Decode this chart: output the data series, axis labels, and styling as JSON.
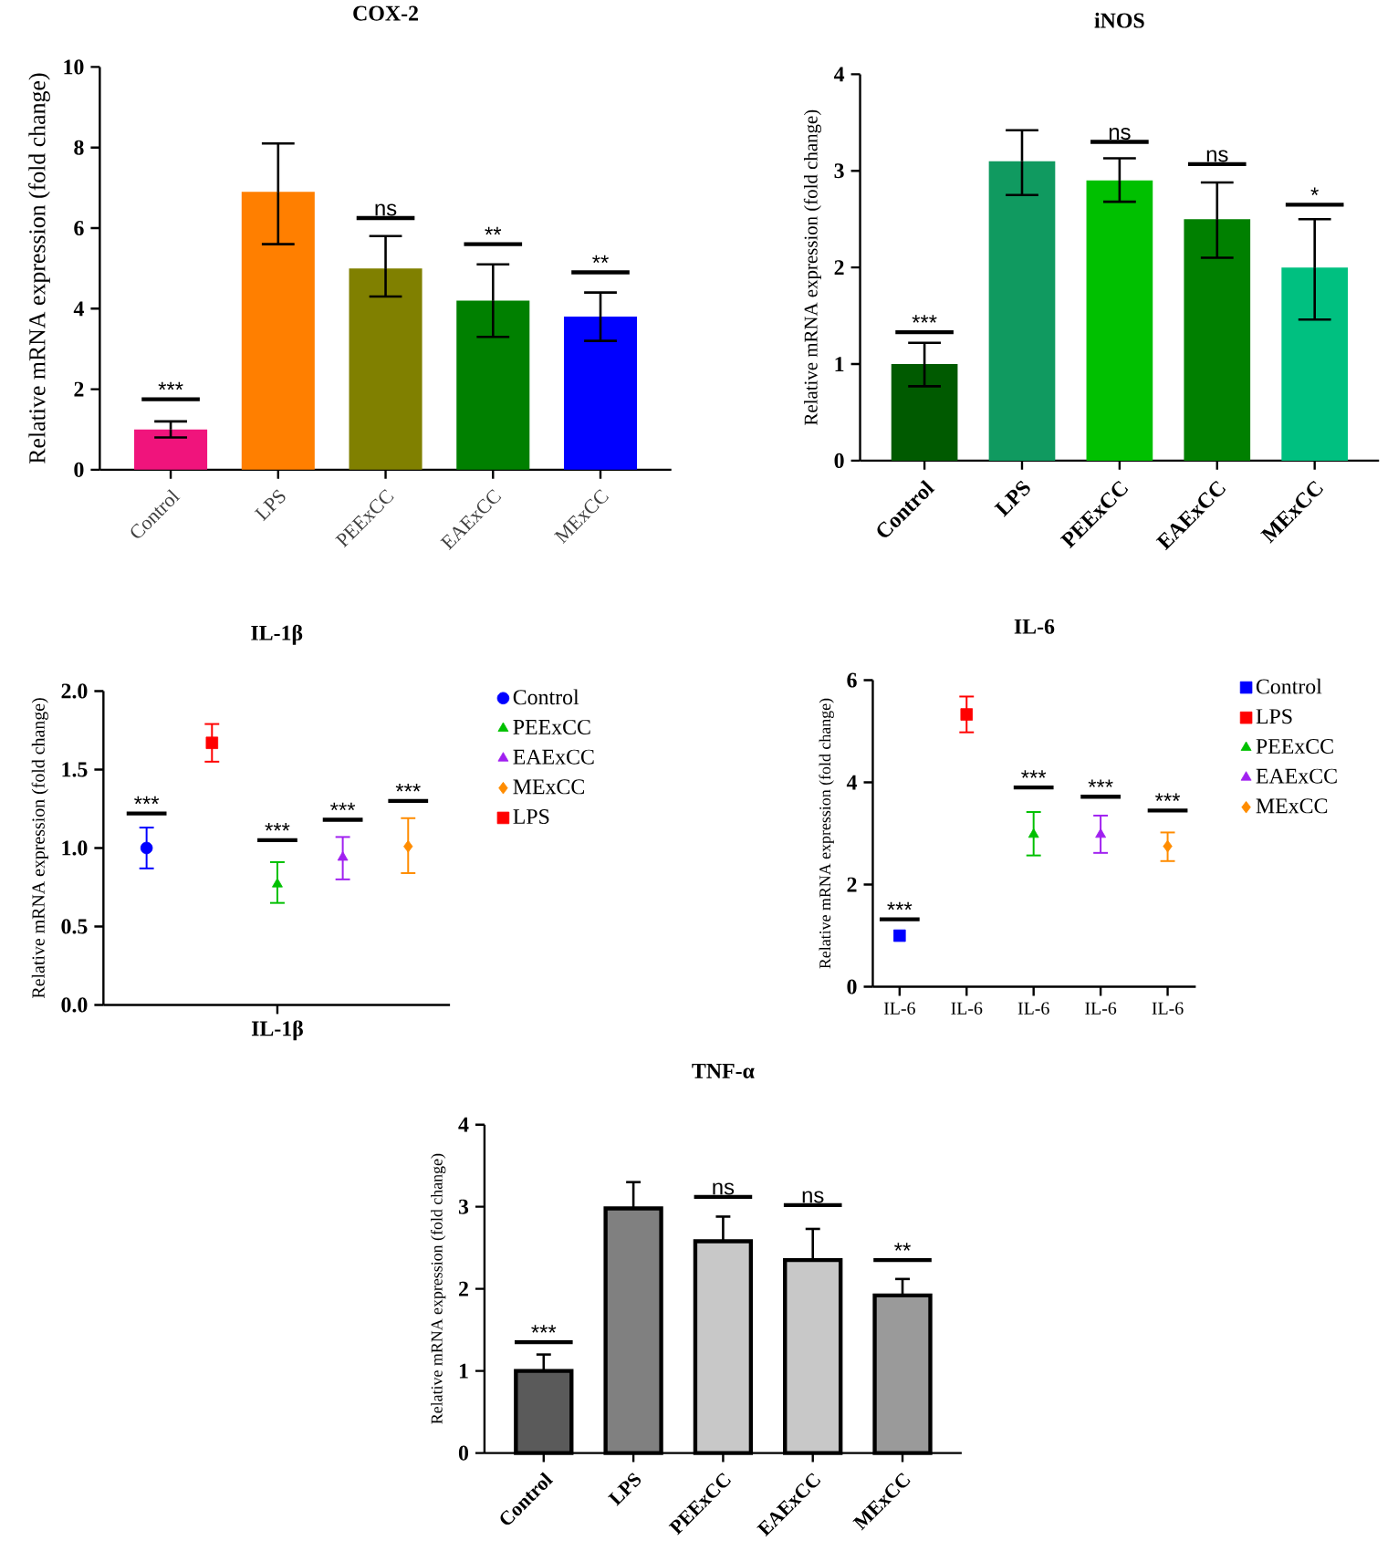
{
  "chart_data": [
    {
      "type": "bar",
      "title": "COX-2",
      "ylabel": "Relative mRNA expression (fold change)",
      "categories": [
        "Control",
        "LPS",
        "PEExCC",
        "EAExCC",
        "MExCC"
      ],
      "values": [
        1.0,
        6.9,
        5.0,
        4.2,
        3.8
      ],
      "errors": [
        [
          0.8,
          1.2
        ],
        [
          5.6,
          8.1
        ],
        [
          4.3,
          5.8
        ],
        [
          3.3,
          5.1
        ],
        [
          3.2,
          4.4
        ]
      ],
      "colors": [
        "#f0147c",
        "#ff7f00",
        "#808000",
        "#008000",
        "#0000ff"
      ],
      "ylim": [
        0,
        10
      ],
      "yticks": [
        0,
        2,
        4,
        6,
        8,
        10
      ],
      "annotations": [
        "***",
        "ns",
        "**",
        "**"
      ]
    },
    {
      "type": "bar",
      "title": "iNOS",
      "ylabel": "Relative mRNA expression (fold change)",
      "categories": [
        "Control",
        "LPS",
        "PEExCC",
        "EAExCC",
        "MExCC"
      ],
      "values": [
        1.0,
        3.1,
        2.9,
        2.5,
        2.0
      ],
      "errors": [
        [
          0.77,
          1.22
        ],
        [
          2.75,
          3.42
        ],
        [
          2.68,
          3.13
        ],
        [
          2.1,
          2.88
        ],
        [
          1.46,
          2.5
        ]
      ],
      "colors": [
        "#005a00",
        "#109a60",
        "#00c000",
        "#008000",
        "#00c080"
      ],
      "ylim": [
        0,
        4
      ],
      "yticks": [
        0,
        1,
        2,
        3,
        4
      ],
      "annotations": [
        "***",
        "ns",
        "ns",
        "*"
      ]
    },
    {
      "type": "scatter",
      "title": "IL-1β",
      "ylabel": "Relative mRNA expression (fold change)",
      "categories": [
        null,
        null,
        "IL-1β",
        null,
        null
      ],
      "ylim": [
        0,
        2
      ],
      "yticks": [
        {
          "value": 0,
          "label": "0.0"
        },
        {
          "value": 0.5,
          "label": "0.5"
        },
        {
          "value": 1,
          "label": "1.0"
        },
        {
          "value": 1.5,
          "label": "1.5"
        },
        {
          "value": 2,
          "label": "2.0"
        }
      ],
      "legend": "right",
      "series": [
        {
          "name": "Control",
          "color": "#0000ff",
          "marker": "circle",
          "values": [
            1.0,
            null,
            null,
            null,
            null
          ],
          "errors": [
            [
              0.87,
              1.13
            ],
            null,
            null,
            null,
            null
          ]
        },
        {
          "name": "PEExCC",
          "color": "#00c000",
          "marker": "triangle",
          "values": [
            null,
            null,
            0.77,
            null,
            null
          ],
          "errors": [
            null,
            null,
            [
              0.65,
              0.91
            ],
            null,
            null
          ]
        },
        {
          "name": "EAExCC",
          "color": "#a020f0",
          "marker": "triangle",
          "values": [
            null,
            null,
            null,
            0.94,
            null
          ],
          "errors": [
            null,
            null,
            null,
            [
              0.8,
              1.07
            ],
            null
          ]
        },
        {
          "name": "MExCC",
          "color": "#ff8c00",
          "marker": "diamond",
          "values": [
            null,
            null,
            null,
            null,
            1.01
          ],
          "errors": [
            null,
            null,
            null,
            null,
            [
              0.84,
              1.19
            ]
          ]
        },
        {
          "name": "LPS",
          "color": "#ff0000",
          "marker": "square",
          "values": [
            null,
            1.67,
            null,
            null,
            null
          ],
          "errors": [
            null,
            [
              1.55,
              1.79
            ],
            null,
            null,
            null
          ]
        }
      ],
      "annotations": [
        "***",
        "***",
        "***",
        "***"
      ]
    },
    {
      "type": "scatter",
      "title": "IL-6",
      "ylabel": "Relative mRNA expression (fold change)",
      "categories": [
        "IL-6",
        "IL-6",
        "IL-6",
        "IL-6",
        "IL-6"
      ],
      "ylim": [
        0,
        6
      ],
      "yticks": [
        0,
        2,
        4,
        6
      ],
      "legend": "right",
      "series": [
        {
          "name": "Control",
          "color": "#0000ff",
          "marker": "square",
          "values": [
            1.0,
            null,
            null,
            null,
            null
          ]
        },
        {
          "name": "LPS",
          "color": "#ff0000",
          "marker": "square",
          "values": [
            null,
            5.33,
            null,
            null,
            null
          ],
          "errors": [
            null,
            [
              4.98,
              5.68
            ],
            null,
            null,
            null
          ]
        },
        {
          "name": "PEExCC",
          "color": "#00c000",
          "marker": "triangle",
          "values": [
            null,
            null,
            2.98,
            null,
            null
          ],
          "errors": [
            null,
            null,
            [
              2.57,
              3.42
            ],
            null,
            null
          ]
        },
        {
          "name": "EAExCC",
          "color": "#a020f0",
          "marker": "triangle",
          "values": [
            null,
            null,
            null,
            2.98,
            null
          ],
          "errors": [
            null,
            null,
            null,
            [
              2.62,
              3.35
            ],
            null
          ]
        },
        {
          "name": "MExCC",
          "color": "#ff8c00",
          "marker": "diamond",
          "values": [
            null,
            null,
            null,
            null,
            2.75
          ],
          "errors": [
            null,
            null,
            null,
            null,
            [
              2.46,
              3.02
            ]
          ]
        }
      ],
      "annotations": [
        "***",
        "***",
        "***",
        "***"
      ]
    },
    {
      "type": "bar",
      "title": "TNF-α",
      "ylabel": "Relative mRNA expression (fold change)",
      "categories": [
        "Control",
        "LPS",
        "PEExCC",
        "EAExCC",
        "MExCC"
      ],
      "values": [
        1.0,
        2.98,
        2.58,
        2.35,
        1.92
      ],
      "errors": [
        [
          1.0,
          1.2
        ],
        [
          2.98,
          3.3
        ],
        [
          2.58,
          2.88
        ],
        [
          2.35,
          2.73
        ],
        [
          1.92,
          2.12
        ]
      ],
      "colors": [
        "#5a5a5a",
        "#808080",
        "#c8c8c8",
        "#c8c8c8",
        "#9a9a9a"
      ],
      "ylim": [
        0,
        4
      ],
      "yticks": [
        0,
        1,
        2,
        3,
        4
      ],
      "annotations": [
        "***",
        "ns",
        "ns",
        "**"
      ]
    }
  ]
}
